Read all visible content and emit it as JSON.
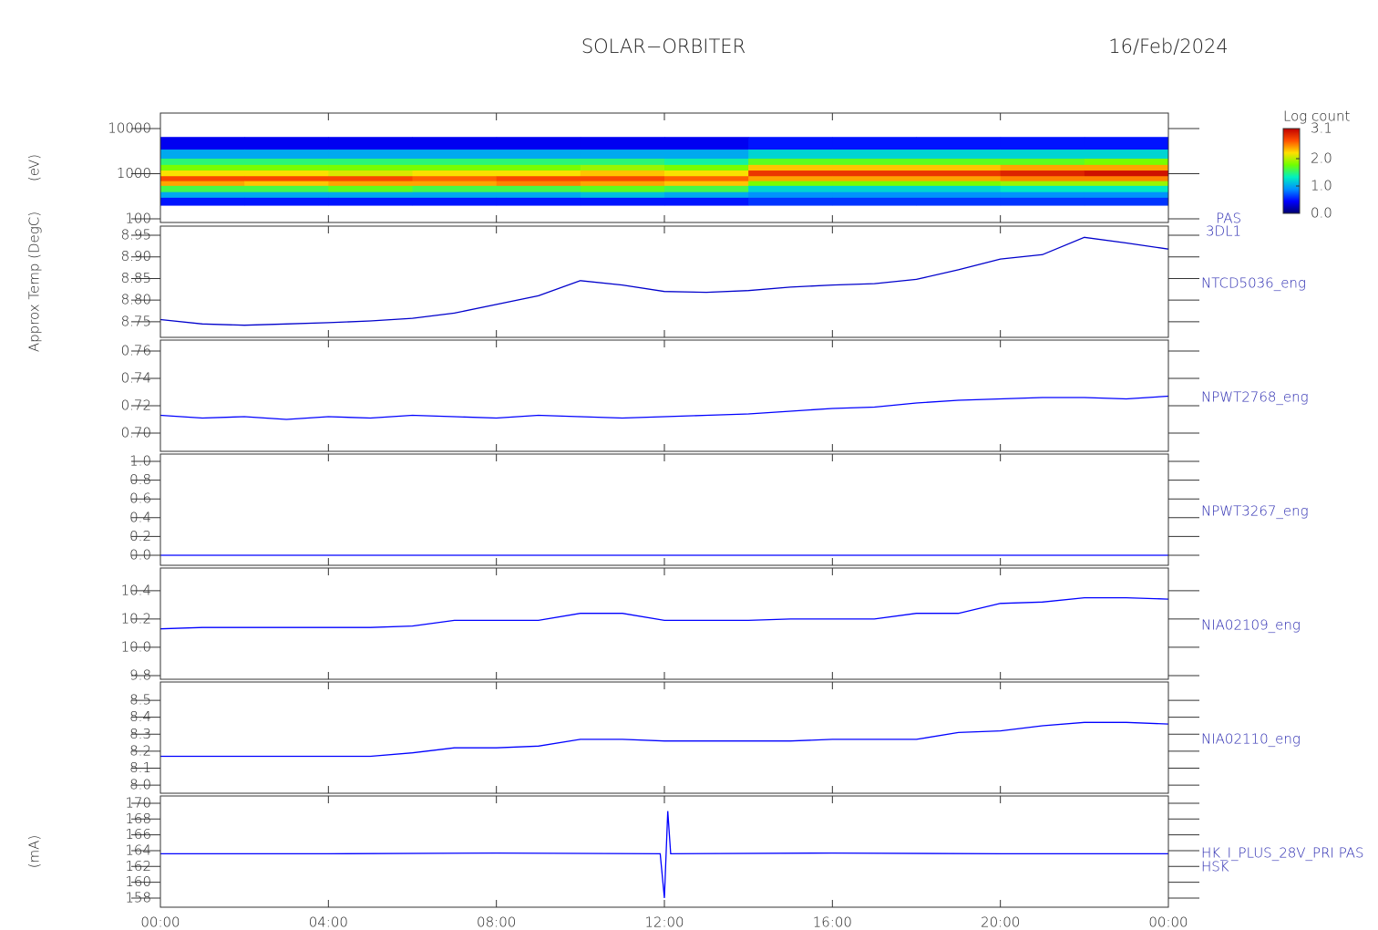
{
  "page": {
    "title": "SOLAR−ORBITER",
    "date": "16/Feb/2024"
  },
  "chart_data": [
    {
      "type": "heatmap",
      "ylabel": "(eV)",
      "log_y": true,
      "labels": [
        "PAS",
        "3DL1"
      ],
      "ylim": [
        83,
        22000
      ],
      "yticks": [
        100,
        1000,
        10000
      ],
      "x_edges": [
        0,
        2,
        4,
        6,
        8,
        10,
        12,
        14,
        16,
        18,
        20,
        22,
        24
      ],
      "energy_edges": [
        200,
        300,
        400,
        550,
        700,
        900,
        1200,
        1600,
        2200,
        3500,
        6500
      ],
      "z": [
        [
          0.5,
          1.0,
          1.6,
          2.4,
          2.7,
          2.2,
          1.8,
          1.5,
          1.0,
          0.4
        ],
        [
          0.5,
          1.0,
          1.6,
          2.3,
          2.7,
          2.2,
          1.8,
          1.5,
          1.0,
          0.4
        ],
        [
          0.5,
          1.0,
          1.7,
          2.4,
          2.7,
          2.1,
          1.8,
          1.5,
          1.0,
          0.4
        ],
        [
          0.5,
          1.0,
          1.6,
          2.4,
          2.6,
          2.2,
          1.8,
          1.5,
          1.0,
          0.4
        ],
        [
          0.5,
          1.0,
          1.6,
          2.5,
          2.7,
          2.2,
          1.8,
          1.5,
          1.0,
          0.4
        ],
        [
          0.5,
          1.1,
          1.7,
          2.4,
          2.7,
          2.3,
          1.9,
          1.5,
          1.0,
          0.4
        ],
        [
          0.5,
          1.0,
          1.6,
          2.3,
          2.6,
          2.2,
          1.8,
          1.4,
          1.0,
          0.4
        ],
        [
          0.6,
          0.9,
          1.2,
          1.8,
          2.4,
          2.8,
          2.3,
          1.7,
          1.2,
          0.5
        ],
        [
          0.6,
          0.9,
          1.2,
          1.8,
          2.4,
          2.8,
          2.3,
          1.7,
          1.2,
          0.5
        ],
        [
          0.6,
          0.9,
          1.2,
          1.8,
          2.4,
          2.8,
          2.3,
          1.7,
          1.2,
          0.5
        ],
        [
          0.6,
          0.9,
          1.3,
          1.9,
          2.5,
          2.9,
          2.4,
          1.7,
          1.2,
          0.5
        ],
        [
          0.6,
          0.9,
          1.3,
          1.9,
          2.5,
          3.0,
          2.4,
          1.8,
          1.2,
          0.5
        ]
      ],
      "colorbar_title": "Log count",
      "zlim": [
        0,
        3.1
      ],
      "zticks": [
        {
          "value": 0,
          "label": "0.0"
        },
        {
          "value": 1,
          "label": "1.0"
        },
        {
          "value": 2,
          "label": "2.0"
        },
        3.1
      ],
      "colorscale": [
        "#000070",
        "#0000ff",
        "#0090ff",
        "#00f0c0",
        "#70ff00",
        "#ffe000",
        "#ff5000",
        "#c00000"
      ]
    },
    {
      "type": "line",
      "ylabel": "Approx Temp (DegC)",
      "labels": [
        "NTCD5036_eng"
      ],
      "color": "#0000cc",
      "ylim": [
        8.714,
        8.971
      ],
      "yticks": [
        8.75,
        {
          "value": 8.8,
          "label": "8.80"
        },
        8.85,
        {
          "value": 8.9,
          "label": "8.90"
        },
        8.95
      ],
      "x": [
        0,
        1,
        2,
        3,
        4,
        5,
        6,
        7,
        8,
        9,
        10,
        11,
        12,
        13,
        14,
        15,
        16,
        17,
        18,
        19,
        20,
        21,
        22,
        23,
        24
      ],
      "values": [
        8.755,
        8.745,
        8.742,
        8.745,
        8.748,
        8.752,
        8.758,
        8.77,
        8.79,
        8.81,
        8.845,
        8.835,
        8.82,
        8.818,
        8.822,
        8.83,
        8.835,
        8.838,
        8.848,
        8.87,
        8.895,
        8.905,
        8.945,
        8.932,
        8.918
      ]
    },
    {
      "type": "line",
      "labels": [
        "NPWT2768_eng"
      ],
      "color": "#0000ff",
      "ylim": [
        0.6867,
        0.768
      ],
      "yticks": [
        {
          "value": 0.7,
          "label": "0.70"
        },
        0.72,
        0.74,
        0.76
      ],
      "x": [
        0,
        1,
        2,
        3,
        4,
        5,
        6,
        7,
        8,
        9,
        10,
        11,
        12,
        13,
        14,
        15,
        16,
        17,
        18,
        19,
        20,
        21,
        22,
        23,
        24
      ],
      "values": [
        0.713,
        0.711,
        0.712,
        0.71,
        0.712,
        0.711,
        0.713,
        0.712,
        0.711,
        0.713,
        0.712,
        0.711,
        0.712,
        0.713,
        0.714,
        0.716,
        0.718,
        0.719,
        0.722,
        0.724,
        0.725,
        0.726,
        0.726,
        0.725,
        0.727
      ]
    },
    {
      "type": "line",
      "labels": [
        "NPWT3267_eng"
      ],
      "color": "#0000ff",
      "ylim": [
        -0.107,
        1.078
      ],
      "yticks": [
        {
          "value": 0,
          "label": "0.0"
        },
        0.2,
        0.4,
        0.6,
        0.8,
        {
          "value": 1,
          "label": "1.0"
        }
      ],
      "x": [
        0,
        24
      ],
      "values": [
        0,
        0
      ]
    },
    {
      "type": "line",
      "labels": [
        "NIA02109_eng"
      ],
      "color": "#0000ff",
      "ylim": [
        9.774,
        10.56
      ],
      "yticks": [
        9.8,
        {
          "value": 10,
          "label": "10.0"
        },
        10.2,
        10.4
      ],
      "x": [
        0,
        1,
        2,
        3,
        4,
        5,
        6,
        7,
        8,
        9,
        10,
        11,
        12,
        13,
        14,
        15,
        16,
        17,
        18,
        19,
        20,
        21,
        22,
        23,
        24
      ],
      "values": [
        10.13,
        10.14,
        10.14,
        10.14,
        10.14,
        10.14,
        10.15,
        10.19,
        10.19,
        10.19,
        10.24,
        10.24,
        10.19,
        10.19,
        10.19,
        10.2,
        10.2,
        10.2,
        10.24,
        10.24,
        10.31,
        10.32,
        10.35,
        10.35,
        10.34
      ]
    },
    {
      "type": "line",
      "labels": [
        "NIA02110_eng"
      ],
      "color": "#0000ff",
      "ylim": [
        7.952,
        8.608
      ],
      "yticks": [
        {
          "value": 8,
          "label": "8.0"
        },
        8.1,
        8.2,
        8.3,
        8.4,
        8.5
      ],
      "x": [
        0,
        1,
        2,
        3,
        4,
        5,
        6,
        7,
        8,
        9,
        10,
        11,
        12,
        13,
        14,
        15,
        16,
        17,
        18,
        19,
        20,
        21,
        22,
        23,
        24
      ],
      "values": [
        8.17,
        8.17,
        8.17,
        8.17,
        8.17,
        8.17,
        8.19,
        8.22,
        8.22,
        8.23,
        8.27,
        8.27,
        8.26,
        8.26,
        8.26,
        8.26,
        8.27,
        8.27,
        8.27,
        8.31,
        8.32,
        8.35,
        8.37,
        8.37,
        8.36
      ]
    },
    {
      "type": "line",
      "ylabel": "(mA)",
      "labels": [
        "HK_I_PLUS_28V_PRI PAS",
        "HSK"
      ],
      "color": "#0000ff",
      "ylim": [
        156.84,
        170.92
      ],
      "yticks": [
        158,
        160,
        162,
        164,
        166,
        168,
        170
      ],
      "x": [
        0,
        4,
        8,
        11.9,
        12.0,
        12.08,
        12.15,
        16,
        20,
        24
      ],
      "values": [
        163.6,
        163.6,
        163.7,
        163.6,
        158.0,
        169.0,
        163.6,
        163.7,
        163.6,
        163.6
      ],
      "xlim": [
        0,
        24
      ],
      "xticks": [
        {
          "value": 0,
          "label": "00:00"
        },
        {
          "value": 4,
          "label": "04:00"
        },
        {
          "value": 8,
          "label": "08:00"
        },
        {
          "value": 12,
          "label": "12:00"
        },
        {
          "value": 16,
          "label": "16:00"
        },
        {
          "value": 20,
          "label": "20:00"
        },
        {
          "value": 24,
          "label": "00:00"
        }
      ]
    }
  ]
}
